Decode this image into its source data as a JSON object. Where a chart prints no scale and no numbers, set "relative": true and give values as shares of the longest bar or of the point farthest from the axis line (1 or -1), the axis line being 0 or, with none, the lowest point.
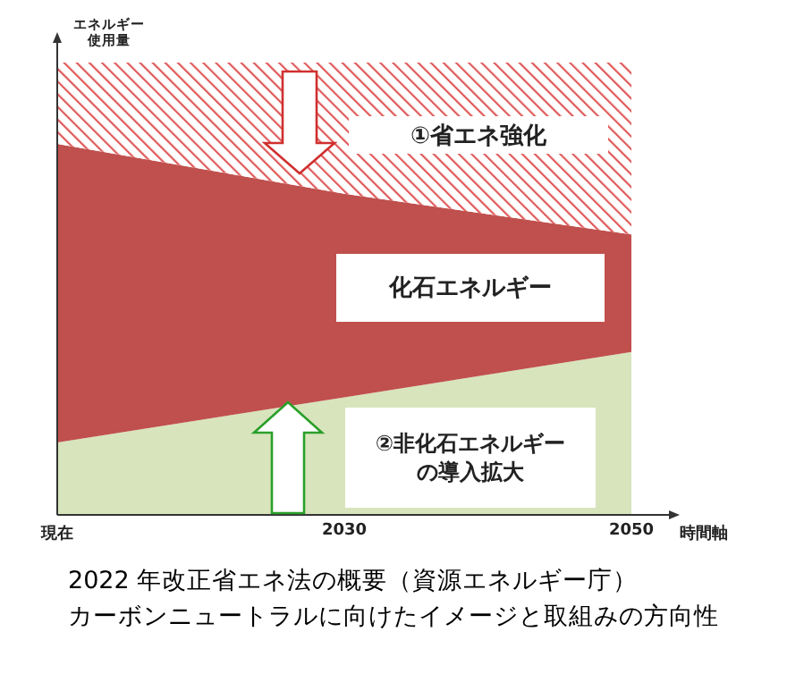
{
  "chart_data": {
    "type": "area",
    "stacked": true,
    "relative": true,
    "categories": [
      "現在",
      "2030",
      "2050"
    ],
    "xlabel": "時間軸",
    "ylabel": "エネルギー使用量",
    "series": [
      {
        "name": "②非化石エネルギーの導入拡大",
        "color": "#d8e4bc",
        "values": [
          0.16,
          0.26,
          0.36
        ]
      },
      {
        "name": "化石エネルギー",
        "color": "#c0504d",
        "values": [
          0.66,
          0.45,
          0.26
        ]
      },
      {
        "name": "①省エネ強化",
        "color": "#e05a5a",
        "values": [
          0.18,
          0.29,
          0.38
        ]
      }
    ],
    "annotations": [
      "2022 年改正省エネ法の概要（資源エネルギー庁）",
      "カーボンニュートラルに向けたイメージと取組みの方向性"
    ]
  }
}
